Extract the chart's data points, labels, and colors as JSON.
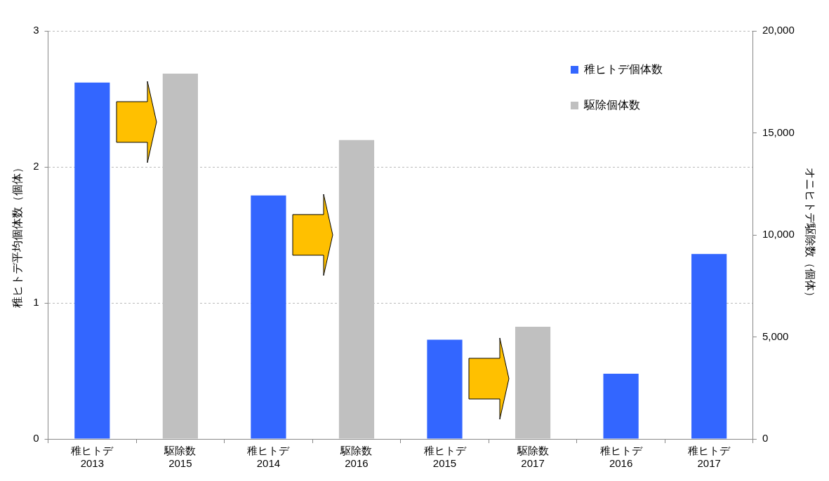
{
  "chart_data": {
    "type": "bar",
    "categories": [
      "稚ヒトデ\n2013",
      "駆除数\n2015",
      "稚ヒトデ\n2014",
      "駆除数\n2016",
      "稚ヒトデ\n2015",
      "駆除数\n2017",
      "稚ヒトデ\n2016",
      "稚ヒトデ\n2017"
    ],
    "series": [
      {
        "name": "稚ヒトデ個体数",
        "color": "#3366ff",
        "values": [
          2.62,
          null,
          1.79,
          null,
          0.73,
          null,
          0.48,
          1.36
        ]
      },
      {
        "name": "駆除個体数",
        "color": "#c0c0c0",
        "axis": "y2",
        "values": [
          null,
          17900,
          null,
          14650,
          null,
          5500,
          null,
          null
        ]
      }
    ],
    "ylabel": "稚ヒトデ平均個体数（個体）",
    "y2label": "オニヒトデ駆除数（個体）",
    "ylim": [
      0,
      3
    ],
    "yticks": [
      0,
      1,
      2,
      3
    ],
    "y2lim": [
      0,
      20000
    ],
    "y2ticks": [
      0,
      {
        "value": 5000,
        "label": "5,000"
      },
      {
        "value": 10000,
        "label": "10,000"
      },
      {
        "value": 15000,
        "label": "15,000"
      },
      {
        "value": 20000,
        "label": "20,000"
      }
    ],
    "grid": "y",
    "legend": "top right"
  }
}
